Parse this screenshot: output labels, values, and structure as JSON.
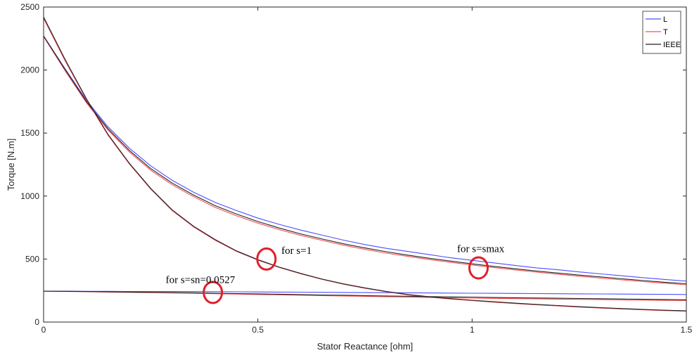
{
  "chart_data": {
    "type": "line",
    "title": "",
    "xlabel": "Stator Reactance [ohm]",
    "ylabel": "Torque [N.m]",
    "xlim": [
      0,
      1.5
    ],
    "ylim": [
      0,
      2500
    ],
    "xticks": [
      0,
      0.5,
      1,
      1.5
    ],
    "xtick_labels": [
      "0",
      "0.5",
      "1",
      "1.5"
    ],
    "yticks": [
      0,
      500,
      1000,
      1500,
      2000,
      2500
    ],
    "ytick_labels": [
      "0",
      "500",
      "1000",
      "1500",
      "2000",
      "2500"
    ],
    "grid": false,
    "legend_position": "top-right",
    "x": [
      0,
      0.05,
      0.1,
      0.15,
      0.2,
      0.25,
      0.3,
      0.35,
      0.4,
      0.45,
      0.5,
      0.55,
      0.6,
      0.65,
      0.7,
      0.75,
      0.8,
      0.85,
      0.9,
      0.95,
      1.0,
      1.05,
      1.1,
      1.15,
      1.2,
      1.25,
      1.3,
      1.35,
      1.4,
      1.45,
      1.5
    ],
    "series": [
      {
        "name": "L",
        "color": "#4d4dff",
        "groups": [
          {
            "label": "for s=smax",
            "values": [
              2270,
              2010,
              1760,
              1550,
              1380,
              1240,
              1125,
              1030,
              950,
              885,
              825,
              775,
              730,
              690,
              650,
              615,
              585,
              560,
              535,
              510,
              490,
              470,
              450,
              430,
              415,
              398,
              382,
              367,
              352,
              338,
              325
            ]
          },
          {
            "label": "for s=1",
            "values": [
              2420,
              2080,
              1770,
              1490,
              1260,
              1060,
              890,
              760,
              655,
              565,
              495,
              435,
              385,
              340,
              302,
              270,
              242,
              218,
              200,
              185,
              172,
              160,
              149,
              139,
              130,
              121,
              113,
              106,
              99,
              93,
              88
            ]
          },
          {
            "label": "for s=sn=0.0527",
            "values": [
              245,
              245,
              244,
              244,
              243,
              243,
              242,
              242,
              241,
              240,
              239,
              238,
              237,
              236,
              235,
              234,
              233,
              232,
              231,
              230,
              229,
              228,
              227,
              226,
              225,
              224,
              223,
              222,
              221,
              220,
              219
            ]
          }
        ]
      },
      {
        "name": "T",
        "color": "#ff4d4d",
        "groups": [
          {
            "label": "for s=smax",
            "values": [
              2265,
              1995,
              1740,
              1525,
              1350,
              1205,
              1090,
              995,
              910,
              843,
              785,
              733,
              688,
              648,
              610,
              577,
              547,
              521,
              496,
              474,
              453,
              433,
              414,
              396,
              380,
              364,
              349,
              335,
              321,
              308,
              296
            ]
          },
          {
            "label": "for s=1",
            "values": [
              2410,
              2075,
              1765,
              1485,
              1255,
              1055,
              885,
              755,
              650,
              561,
              492,
              433,
              383,
              338,
              300,
              268,
              240,
              216,
              198,
              183,
              170,
              158,
              147,
              137,
              128,
              119,
              111,
              104,
              97,
              91,
              86
            ]
          },
          {
            "label": "for s=sn=0.0527",
            "values": [
              245,
              243,
              241,
              238,
              236,
              233,
              231,
              228,
              225,
              222,
              219,
              216,
              213,
              210,
              207,
              204,
              201,
              198,
              195,
              193,
              190,
              188,
              186,
              184,
              182,
              180,
              178,
              176,
              174,
              172,
              170
            ]
          }
        ]
      },
      {
        "name": "IEEE",
        "color": "#222222",
        "groups": [
          {
            "label": "for s=smax",
            "values": [
              2270,
              2005,
              1750,
              1535,
              1362,
              1218,
              1103,
              1008,
              924,
              857,
              798,
              746,
              700,
              659,
              621,
              588,
              558,
              531,
              506,
              484,
              462,
              442,
              423,
              405,
              389,
              373,
              358,
              343,
              329,
              316,
              304
            ]
          },
          {
            "label": "for s=1",
            "values": [
              2420,
              2085,
              1772,
              1490,
              1260,
              1060,
              890,
              760,
              655,
              565,
              495,
              436,
              386,
              341,
              303,
              271,
              243,
              219,
              201,
              186,
              173,
              161,
              150,
              140,
              131,
              122,
              114,
              107,
              100,
              94,
              89
            ]
          },
          {
            "label": "for s=sn=0.0527",
            "values": [
              245,
              244,
              242,
              240,
              238,
              236,
              234,
              232,
              229,
              226,
              224,
              221,
              218,
              215,
              213,
              210,
              207,
              205,
              202,
              200,
              198,
              195,
              193,
              191,
              189,
              187,
              185,
              183,
              181,
              179,
              177
            ]
          }
        ]
      }
    ],
    "annotations": [
      {
        "text": "for s=1",
        "x": 0.52,
        "y": 500,
        "text_x": 0.555,
        "text_y": 540
      },
      {
        "text": "for s=smax",
        "x": 1.015,
        "y": 430,
        "text_x": 0.965,
        "text_y": 555
      },
      {
        "text": "for s=sn=0.0527",
        "x": 0.395,
        "y": 235,
        "text_x": 0.285,
        "text_y": 310
      }
    ],
    "annotation_marker_color": "#e0202a"
  }
}
